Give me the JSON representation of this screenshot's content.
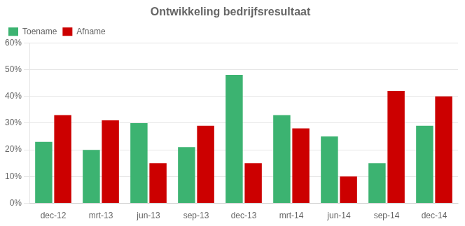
{
  "chart_data": {
    "type": "bar",
    "title": "Ontwikkeling bedrijfsresultaat",
    "categories": [
      "dec-12",
      "mrt-13",
      "jun-13",
      "sep-13",
      "dec-13",
      "mrt-14",
      "jun-14",
      "sep-14",
      "dec-14"
    ],
    "series": [
      {
        "name": "Toename",
        "color": "#3CB371",
        "values": [
          0.23,
          0.2,
          0.3,
          0.21,
          0.48,
          0.33,
          0.25,
          0.15,
          0.29
        ]
      },
      {
        "name": "Afname",
        "color": "#CC0000",
        "values": [
          0.33,
          0.31,
          0.15,
          0.29,
          0.15,
          0.28,
          0.1,
          0.42,
          0.4
        ]
      }
    ],
    "ylim": [
      0,
      0.6
    ],
    "yticks": [
      {
        "value": 0.0,
        "label": "0%"
      },
      {
        "value": 0.1,
        "label": "10%"
      },
      {
        "value": 0.2,
        "label": "20%"
      },
      {
        "value": 0.3,
        "label": "30%"
      },
      {
        "value": 0.4,
        "label": "40%"
      },
      {
        "value": 0.5,
        "label": "50%"
      },
      {
        "value": 0.6,
        "label": "60%"
      }
    ],
    "grid": true,
    "legend": "upper left"
  }
}
